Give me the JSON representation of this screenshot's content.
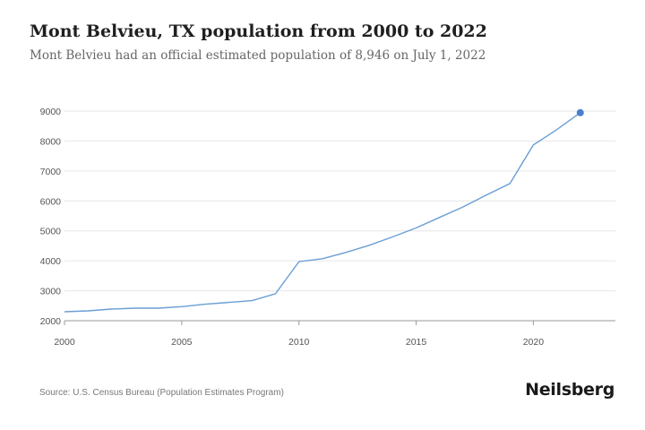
{
  "header": {
    "title": "Mont Belvieu, TX population from 2000 to 2022",
    "subtitle": "Mont Belvieu had an official estimated population of 8,946 on July 1, 2022"
  },
  "footer": {
    "source": "Source: U.S. Census Bureau (Population Estimates Program)",
    "brand": "Neilsberg"
  },
  "colors": {
    "line": "#6a9fd4",
    "marker": "#4a7fcf",
    "grid": "#e6e6e6",
    "axis": "#999999"
  },
  "chart_data": {
    "type": "line",
    "x": [
      2000,
      2001,
      2002,
      2003,
      2004,
      2005,
      2006,
      2007,
      2008,
      2009,
      2010,
      2011,
      2012,
      2013,
      2014,
      2015,
      2016,
      2017,
      2018,
      2019,
      2020,
      2021,
      2022
    ],
    "values": [
      2300,
      2330,
      2390,
      2420,
      2420,
      2470,
      2550,
      2610,
      2670,
      2900,
      3970,
      4070,
      4280,
      4520,
      4800,
      5100,
      5450,
      5800,
      6200,
      6580,
      7870,
      8380,
      8946
    ],
    "xticks": [
      2000,
      2005,
      2010,
      2015,
      2020
    ],
    "yticks": [
      2000,
      3000,
      4000,
      5000,
      6000,
      7000,
      8000,
      9000
    ],
    "xlim": [
      2000,
      2023.5
    ],
    "ylim": [
      2000,
      9000
    ],
    "grid": true,
    "last_point_marker": true
  }
}
